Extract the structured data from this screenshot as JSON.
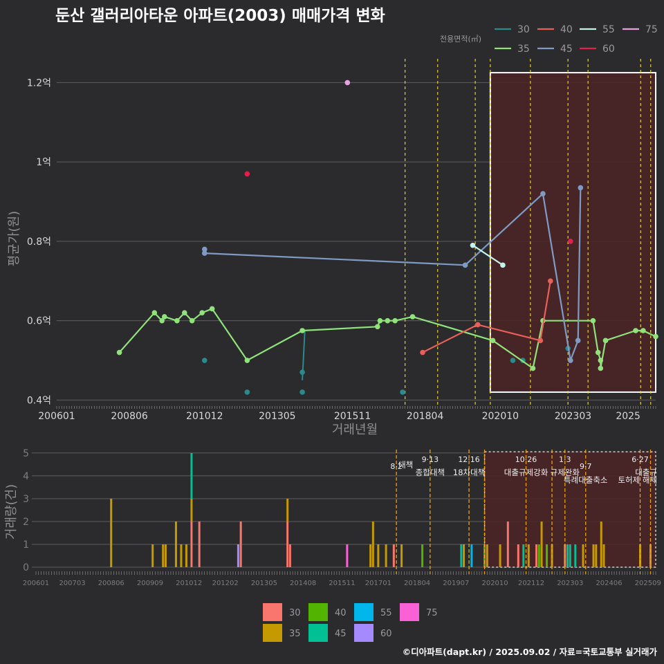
{
  "title": "둔산 갤러리아타운 아파트(2003) 매매가격 변화",
  "credit": "©디아파트(dapt.kr) / 2025.09.02 / 자료=국토교통부 실거래가",
  "colors": {
    "background": "#2b2b2d",
    "grid": "#5e5e5e",
    "event_line": "#e6d22a",
    "event_line_bottom": "#e6a21a",
    "highlight_fill": "#4a2526",
    "highlight_border_top": "#ffffff",
    "highlight_border_bottom": "#d0d0d0"
  },
  "price_chart": {
    "xlabel": "거래년월",
    "ylabel": "평균가(원)",
    "legend_title": "전용면적(㎡)",
    "legend_position": "top-right",
    "grid": true,
    "ylim": [
      0.385,
      1.26
    ],
    "y_ticks": [
      {
        "v": 0.4,
        "label": "0.4억"
      },
      {
        "v": 0.6,
        "label": "0.6억"
      },
      {
        "v": 0.8,
        "label": "0.8억"
      },
      {
        "v": 1.0,
        "label": "1억"
      },
      {
        "v": 1.2,
        "label": "1.2억"
      }
    ],
    "x_ticks": [
      "200601",
      "200806",
      "201012",
      "201305",
      "201511",
      "201804",
      "202010",
      "202303",
      "2025"
    ],
    "event_months": [
      "2017-08",
      "2018-09",
      "2019-12",
      "2020-06",
      "2021-10",
      "2023-01",
      "2023-09",
      "2025-06",
      "2025-10"
    ],
    "highlight": {
      "from": "2020-06",
      "to": "2025-12"
    },
    "series": [
      {
        "name": "30",
        "color": "#2a8a8c",
        "lines": false,
        "points": [
          [
            "2010-12",
            0.5
          ],
          [
            "2012-05",
            0.42
          ],
          [
            "2014-03",
            0.42
          ],
          [
            "2014-03",
            0.47
          ],
          [
            "2017-07",
            0.42
          ],
          [
            "2021-03",
            0.5
          ],
          [
            "2021-07",
            0.5
          ],
          [
            "2023-01",
            0.53
          ]
        ],
        "segments": [
          [
            [
              "2014-03",
              0.45
            ],
            [
              "2014-04",
              0.575
            ]
          ]
        ]
      },
      {
        "name": "35",
        "color": "#8fe37a",
        "lines": true,
        "points": [
          [
            "2008-02",
            0.52
          ],
          [
            "2009-04",
            0.62
          ],
          [
            "2009-07",
            0.6
          ],
          [
            "2009-08",
            0.61
          ],
          [
            "2010-01",
            0.6
          ],
          [
            "2010-04",
            0.62
          ],
          [
            "2010-07",
            0.6
          ],
          [
            "2010-11",
            0.62
          ],
          [
            "2011-03",
            0.63
          ],
          [
            "2012-05",
            0.5
          ],
          [
            "2014-03",
            0.575
          ],
          [
            "2016-09",
            0.585
          ],
          [
            "2016-10",
            0.6
          ],
          [
            "2017-01",
            0.6
          ],
          [
            "2017-04",
            0.6
          ],
          [
            "2017-11",
            0.61
          ],
          [
            "2020-07",
            0.55
          ],
          [
            "2021-11",
            0.48
          ],
          [
            "2022-03",
            0.6
          ],
          [
            "2023-11",
            0.6
          ],
          [
            "2024-01",
            0.52
          ],
          [
            "2024-02",
            0.5
          ],
          [
            "2024-02",
            0.48
          ],
          [
            "2024-04",
            0.55
          ],
          [
            "2025-04",
            0.575
          ],
          [
            "2025-07",
            0.575
          ],
          [
            "2025-12",
            0.56
          ]
        ]
      },
      {
        "name": "40",
        "color": "#e8605a",
        "lines": true,
        "points": [
          [
            "2018-03",
            0.52
          ],
          [
            "2020-01",
            0.59
          ],
          [
            "2022-02",
            0.55
          ],
          [
            "2022-06",
            0.7
          ]
        ]
      },
      {
        "name": "45",
        "color": "#7f9bc4",
        "lines": true,
        "points": [
          [
            "2010-12",
            0.78
          ],
          [
            "2010-12",
            0.77
          ],
          [
            "2019-08",
            0.74
          ],
          [
            "2022-03",
            0.92
          ],
          [
            "2023-02",
            0.5
          ],
          [
            "2023-05",
            0.55
          ],
          [
            "2023-06",
            0.935
          ]
        ]
      },
      {
        "name": "55",
        "color": "#c5f2ec",
        "lines": true,
        "points": [
          [
            "2019-11",
            0.79
          ],
          [
            "2020-11",
            0.74
          ]
        ]
      },
      {
        "name": "60",
        "color": "#e0204f",
        "lines": false,
        "points": [
          [
            "2012-05",
            0.97
          ],
          [
            "2023-02",
            0.8
          ]
        ]
      },
      {
        "name": "75",
        "color": "#e3a3df",
        "lines": false,
        "points": [
          [
            "2015-09",
            1.2
          ]
        ]
      }
    ]
  },
  "volume_chart": {
    "ylabel": "거래량(건)",
    "ylim": [
      0,
      5.3
    ],
    "grid": true,
    "y_ticks": [
      0,
      1,
      2,
      3,
      4,
      5
    ],
    "x_ticks": [
      "200601",
      "200703",
      "200806",
      "200909",
      "201012",
      "201202",
      "201305",
      "201408",
      "201511",
      "201701",
      "201804",
      "201907",
      "202010",
      "202112",
      "202303",
      "202406",
      "202509"
    ],
    "bar_colors": {
      "30": "#f8766d",
      "35": "#c49a00",
      "40": "#53b400",
      "45": "#00c094",
      "55": "#00b6eb",
      "60": "#a58aff",
      "75": "#fb61d7"
    },
    "highlight": {
      "from": "2020-06",
      "to": "2025-12"
    },
    "events": [
      {
        "month": "2017-08",
        "date": "8·2",
        "label": "대책",
        "row": 1
      },
      {
        "month": "2018-09",
        "date": "9·13",
        "label": "종합대책",
        "row": 0
      },
      {
        "month": "2019-12",
        "date": "12·16",
        "label": "18차대책",
        "row": 0
      },
      {
        "month": "2020-06",
        "date": "",
        "label": "",
        "row": 0
      },
      {
        "month": "2021-10",
        "date": "10·26",
        "label": "대출규제강화",
        "row": 0
      },
      {
        "month": "2022-08",
        "date": "",
        "label": "",
        "row": 0
      },
      {
        "month": "2023-01",
        "date": "1·3",
        "label": "규제완화",
        "row": 0
      },
      {
        "month": "2023-09",
        "date": "9·7",
        "label": "특례대출축소",
        "row": 1
      },
      {
        "month": "2025-06",
        "date": "6·27",
        "label": "대출규",
        "row": 0
      },
      {
        "month": "2025-10",
        "date": "",
        "label": "토허제 해제",
        "row": 1
      }
    ],
    "bars": [
      {
        "m": "2008-06",
        "s": {
          "35": 3
        }
      },
      {
        "m": "2009-10",
        "s": {
          "35": 1
        }
      },
      {
        "m": "2010-02",
        "s": {
          "35": 1
        }
      },
      {
        "m": "2010-03",
        "s": {
          "35": 1
        }
      },
      {
        "m": "2010-07",
        "s": {
          "35": 2
        }
      },
      {
        "m": "2010-09",
        "s": {
          "35": 1
        }
      },
      {
        "m": "2010-11",
        "s": {
          "35": 1
        }
      },
      {
        "m": "2011-01",
        "s": {
          "45": 2,
          "35": 1,
          "30": 2
        }
      },
      {
        "m": "2011-04",
        "s": {
          "30": 2
        }
      },
      {
        "m": "2012-07",
        "s": {
          "60": 1
        }
      },
      {
        "m": "2012-08",
        "s": {
          "30": 2
        }
      },
      {
        "m": "2014-02",
        "s": {
          "35": 1,
          "30": 2
        }
      },
      {
        "m": "2014-03",
        "s": {
          "30": 1
        }
      },
      {
        "m": "2016-01",
        "s": {
          "75": 1
        }
      },
      {
        "m": "2016-10",
        "s": {
          "35": 1
        }
      },
      {
        "m": "2016-11",
        "s": {
          "35": 2
        }
      },
      {
        "m": "2017-01",
        "s": {
          "35": 1
        }
      },
      {
        "m": "2017-04",
        "s": {
          "35": 1
        }
      },
      {
        "m": "2017-07",
        "s": {
          "30": 1
        }
      },
      {
        "m": "2017-10",
        "s": {
          "35": 1
        }
      },
      {
        "m": "2018-06",
        "s": {
          "40": 1
        }
      },
      {
        "m": "2019-09",
        "s": {
          "45": 1
        }
      },
      {
        "m": "2019-10",
        "s": {
          "35": 1
        }
      },
      {
        "m": "2020-01",
        "s": {
          "55": 1
        }
      },
      {
        "m": "2020-06",
        "s": {
          "40": 1
        }
      },
      {
        "m": "2020-07",
        "s": {
          "35": 1
        }
      },
      {
        "m": "2020-12",
        "s": {
          "35": 1
        }
      },
      {
        "m": "2021-03",
        "s": {
          "30": 2
        }
      },
      {
        "m": "2021-07",
        "s": {
          "30": 1
        }
      },
      {
        "m": "2021-09",
        "s": {
          "45": 1
        }
      },
      {
        "m": "2021-11",
        "s": {
          "35": 1
        }
      },
      {
        "m": "2022-02",
        "s": {
          "30": 1
        }
      },
      {
        "m": "2022-03",
        "s": {
          "40": 1
        }
      },
      {
        "m": "2022-04",
        "s": {
          "35": 2
        }
      },
      {
        "m": "2022-06",
        "s": {
          "40": 1
        }
      },
      {
        "m": "2022-08",
        "s": {
          "35": 1
        }
      },
      {
        "m": "2023-01",
        "s": {
          "30": 1
        }
      },
      {
        "m": "2023-02",
        "s": {
          "45": 1
        }
      },
      {
        "m": "2023-03",
        "s": {
          "45": 1
        }
      },
      {
        "m": "2023-05",
        "s": {
          "45": 1
        }
      },
      {
        "m": "2023-08",
        "s": {
          "35": 1
        }
      },
      {
        "m": "2023-12",
        "s": {
          "35": 1
        }
      },
      {
        "m": "2024-01",
        "s": {
          "35": 1
        }
      },
      {
        "m": "2024-03",
        "s": {
          "35": 2
        }
      },
      {
        "m": "2024-04",
        "s": {
          "35": 1
        }
      },
      {
        "m": "2025-06",
        "s": {
          "35": 1
        }
      },
      {
        "m": "2025-10",
        "s": {
          "35": 1
        }
      }
    ]
  },
  "bottom_legend": [
    {
      "name": "30",
      "color": "#f8766d"
    },
    {
      "name": "35",
      "color": "#c49a00"
    },
    {
      "name": "40",
      "color": "#53b400"
    },
    {
      "name": "45",
      "color": "#00c094"
    },
    {
      "name": "55",
      "color": "#00b6eb"
    },
    {
      "name": "60",
      "color": "#a58aff"
    },
    {
      "name": "75",
      "color": "#fb61d7"
    }
  ]
}
